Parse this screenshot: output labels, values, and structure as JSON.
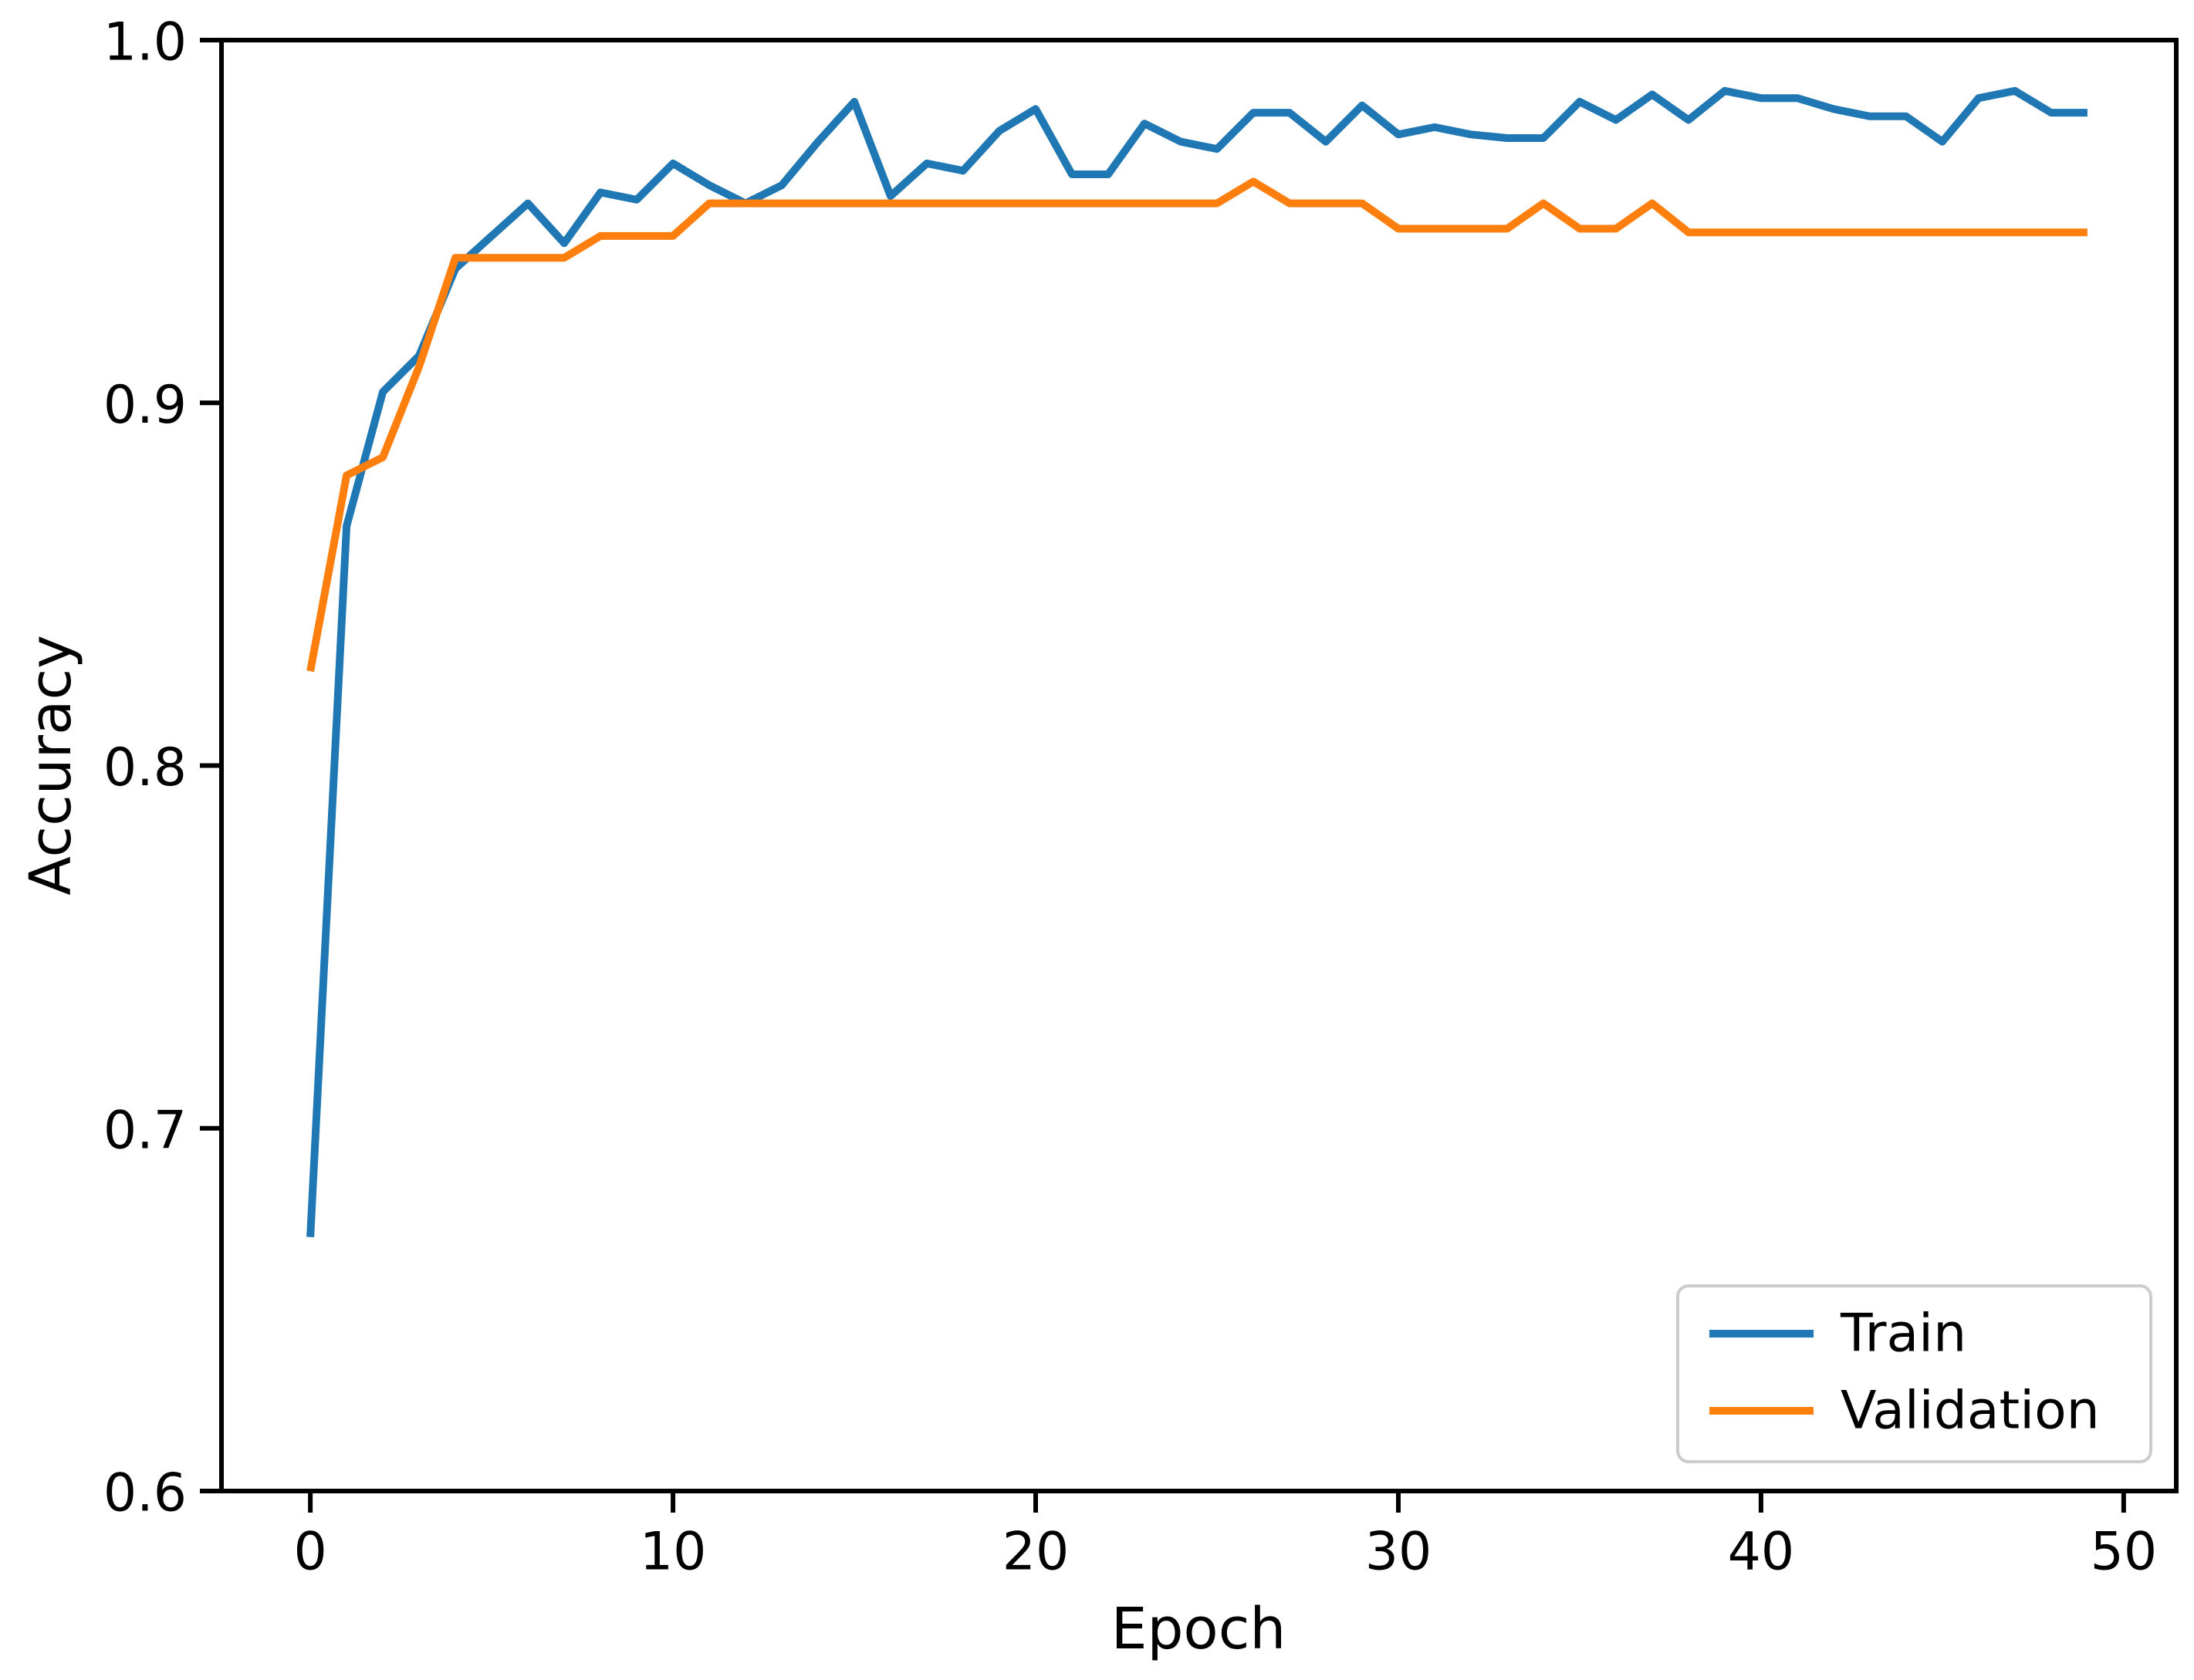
{
  "chart_data": {
    "type": "line",
    "title": "",
    "xlabel": "Epoch",
    "ylabel": "Accuracy",
    "x": [
      0,
      1,
      2,
      3,
      4,
      5,
      6,
      7,
      8,
      9,
      10,
      11,
      12,
      13,
      14,
      15,
      16,
      17,
      18,
      19,
      20,
      21,
      22,
      23,
      24,
      25,
      26,
      27,
      28,
      29,
      30,
      31,
      32,
      33,
      34,
      35,
      36,
      37,
      38,
      39,
      40,
      41,
      42,
      43,
      44,
      45,
      46,
      47,
      48,
      49
    ],
    "series": [
      {
        "name": "Train",
        "color": "#1f77b4",
        "values": [
          0.67,
          0.866,
          0.903,
          0.913,
          0.937,
          0.946,
          0.955,
          0.944,
          0.958,
          0.956,
          0.966,
          0.96,
          0.955,
          0.96,
          0.972,
          0.983,
          0.957,
          0.966,
          0.964,
          0.975,
          0.981,
          0.963,
          0.963,
          0.977,
          0.972,
          0.97,
          0.98,
          0.98,
          0.972,
          0.982,
          0.974,
          0.976,
          0.974,
          0.973,
          0.973,
          0.983,
          0.978,
          0.985,
          0.978,
          0.986,
          0.984,
          0.984,
          0.981,
          0.979,
          0.979,
          0.972,
          0.984,
          0.986,
          0.98,
          0.98
        ]
      },
      {
        "name": "Validation",
        "color": "#ff7f0e",
        "values": [
          0.826,
          0.88,
          0.885,
          0.91,
          0.94,
          0.94,
          0.94,
          0.94,
          0.946,
          0.946,
          0.946,
          0.955,
          0.955,
          0.955,
          0.955,
          0.955,
          0.955,
          0.955,
          0.955,
          0.955,
          0.955,
          0.955,
          0.955,
          0.955,
          0.955,
          0.955,
          0.961,
          0.955,
          0.955,
          0.955,
          0.948,
          0.948,
          0.948,
          0.948,
          0.955,
          0.948,
          0.948,
          0.955,
          0.947,
          0.947,
          0.947,
          0.947,
          0.947,
          0.947,
          0.947,
          0.947,
          0.947,
          0.947,
          0.947,
          0.947
        ]
      }
    ],
    "x_ticks": [
      0,
      10,
      20,
      30,
      40,
      50
    ],
    "y_ticks": [
      0.6,
      0.7,
      0.8,
      0.9,
      1.0
    ],
    "ylim": [
      0.6,
      1.0
    ],
    "xlim": [
      -2.45,
      51.45
    ],
    "grid": false,
    "legend_position": "lower right",
    "axis_color": "#000000",
    "legend_border_color": "#cccccc",
    "background_color": "#ffffff"
  }
}
